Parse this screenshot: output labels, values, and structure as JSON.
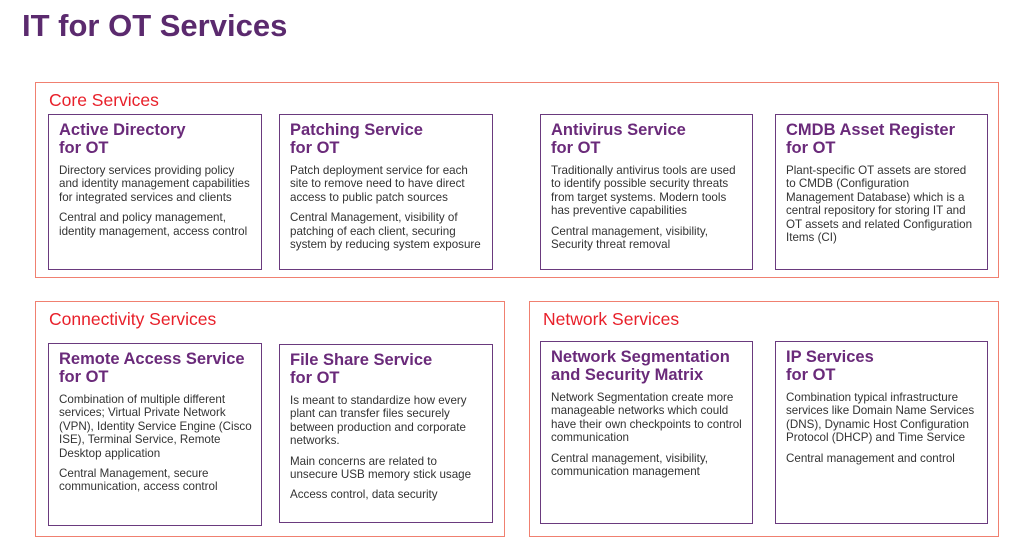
{
  "header": {
    "title": "IT for OT Services"
  },
  "groups": [
    {
      "label": "Core Services",
      "cards": [
        {
          "title": [
            "Active Directory",
            "for OT"
          ],
          "paragraphs": [
            "Directory services providing policy and identity management capabilities for integrated services and clients",
            "Central and policy management, identity management, access control"
          ]
        },
        {
          "title": [
            "Patching Service",
            "for OT"
          ],
          "paragraphs": [
            "Patch deployment service for each site to remove need to have direct access to public patch sources",
            "Central Management, visibility of patching of each client, securing system by reducing system exposure"
          ]
        },
        {
          "title": [
            "Antivirus Service",
            "for OT"
          ],
          "paragraphs": [
            "Traditionally antivirus tools are used to identify possible security threats from target systems. Modern tools has preventive capabilities",
            "Central management, visibility, Security threat removal"
          ]
        },
        {
          "title": [
            "CMDB Asset Register",
            "for OT"
          ],
          "paragraphs": [
            "Plant-specific OT assets are stored to CMDB (Configuration Management Database) which is a central repository for storing IT and OT assets and related Configuration Items (CI)"
          ]
        }
      ]
    },
    {
      "label": "Connectivity Services",
      "cards": [
        {
          "title": [
            "Remote Access Service",
            "for OT"
          ],
          "paragraphs": [
            "Combination of multiple different services; Virtual Private Network (VPN), Identity Service Engine (Cisco ISE), Terminal Service, Remote Desktop application",
            "Central Management, secure communication, access control"
          ]
        },
        {
          "title": [
            "File Share Service",
            "for OT"
          ],
          "paragraphs": [
            "Is meant to standardize how every plant can transfer files securely between production and corporate networks.",
            "Main concerns are related to unsecure USB memory stick usage",
            "Access control, data security"
          ]
        }
      ]
    },
    {
      "label": "Network Services",
      "cards": [
        {
          "title": [
            "Network Segmentation",
            "and Security Matrix"
          ],
          "paragraphs": [
            "Network Segmentation create more manageable networks which could have their own checkpoints to control communication",
            "Central management, visibility, communication management"
          ]
        },
        {
          "title": [
            "IP Services",
            "for OT"
          ],
          "paragraphs": [
            "Combination typical infrastructure services like Domain Name Services (DNS), Dynamic Host Configuration Protocol (DHCP) and Time Service",
            "Central management and control"
          ]
        }
      ]
    }
  ]
}
